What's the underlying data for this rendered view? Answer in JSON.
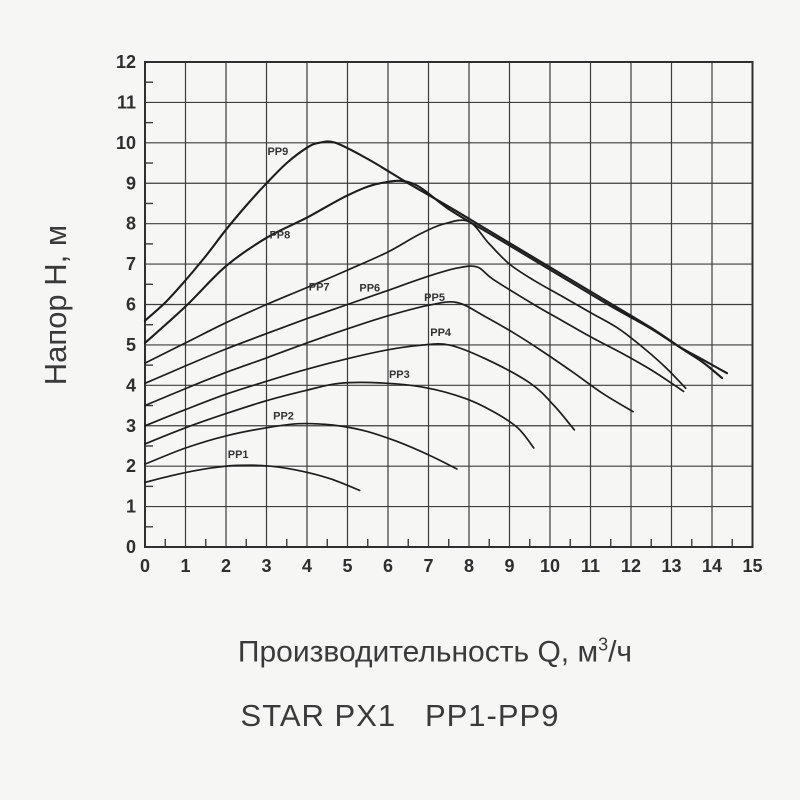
{
  "page": {
    "background": "#f6f6f4"
  },
  "chart_data": {
    "type": "line",
    "title": "STAR PX1   PP1-PP9",
    "xlabel": "Производительность Q, м³/ч",
    "xlabel_parts": {
      "base": "Производительность Q, м",
      "sup": "3",
      "tail": "/ч"
    },
    "ylabel": "Напор Н, м",
    "xlim": [
      0,
      15
    ],
    "ylim": [
      0,
      12
    ],
    "x_ticks": [
      0,
      1,
      2,
      3,
      4,
      5,
      6,
      7,
      8,
      9,
      10,
      11,
      12,
      13,
      14,
      15
    ],
    "y_ticks": [
      0,
      1,
      2,
      3,
      4,
      5,
      6,
      7,
      8,
      9,
      10,
      11,
      12
    ],
    "grid": true,
    "minor_tick_step": 0.5,
    "legend_position": "inline-labels",
    "colors": {
      "background": "#f6f6f4",
      "grid": "#3c3c3c",
      "border": "#2f2f2f",
      "curve": "#1d1d1d",
      "text": "#2e2e2e",
      "curve_label": "#333333"
    },
    "series": [
      {
        "name": "PP1",
        "stroke_width": 1.7,
        "points": [
          [
            0,
            1.6
          ],
          [
            0.8,
            1.8
          ],
          [
            1.6,
            1.95
          ],
          [
            2.3,
            2.02
          ],
          [
            3.1,
            2.0
          ],
          [
            3.9,
            1.87
          ],
          [
            4.6,
            1.68
          ],
          [
            5.3,
            1.4
          ]
        ]
      },
      {
        "name": "PP2",
        "stroke_width": 1.7,
        "points": [
          [
            0,
            2.05
          ],
          [
            1,
            2.45
          ],
          [
            2,
            2.75
          ],
          [
            3,
            2.95
          ],
          [
            3.8,
            3.05
          ],
          [
            4.6,
            3.02
          ],
          [
            5.4,
            2.88
          ],
          [
            6.2,
            2.62
          ],
          [
            7,
            2.28
          ],
          [
            7.7,
            1.93
          ]
        ]
      },
      {
        "name": "PP3",
        "stroke_width": 1.7,
        "points": [
          [
            0,
            2.55
          ],
          [
            1,
            2.95
          ],
          [
            2,
            3.3
          ],
          [
            3,
            3.62
          ],
          [
            4,
            3.88
          ],
          [
            4.8,
            4.05
          ],
          [
            5.8,
            4.06
          ],
          [
            6.9,
            3.95
          ],
          [
            7.9,
            3.68
          ],
          [
            8.6,
            3.35
          ],
          [
            9.2,
            2.95
          ],
          [
            9.6,
            2.45
          ]
        ]
      },
      {
        "name": "PP4",
        "stroke_width": 1.7,
        "points": [
          [
            0,
            3.0
          ],
          [
            1,
            3.4
          ],
          [
            2,
            3.78
          ],
          [
            3,
            4.1
          ],
          [
            4,
            4.4
          ],
          [
            5,
            4.66
          ],
          [
            6,
            4.88
          ],
          [
            6.8,
            4.99
          ],
          [
            7.5,
            5.0
          ],
          [
            8.4,
            4.66
          ],
          [
            9.5,
            4.06
          ],
          [
            10.1,
            3.5
          ],
          [
            10.6,
            2.9
          ]
        ]
      },
      {
        "name": "PP5",
        "stroke_width": 1.7,
        "points": [
          [
            0,
            3.5
          ],
          [
            1,
            3.92
          ],
          [
            2,
            4.32
          ],
          [
            3,
            4.68
          ],
          [
            4,
            5.05
          ],
          [
            5,
            5.4
          ],
          [
            6,
            5.72
          ],
          [
            7,
            5.98
          ],
          [
            7.7,
            6.05
          ],
          [
            8.4,
            5.7
          ],
          [
            9.1,
            5.3
          ],
          [
            9.8,
            4.85
          ],
          [
            10.6,
            4.3
          ],
          [
            11.3,
            3.8
          ],
          [
            12.05,
            3.35
          ]
        ]
      },
      {
        "name": "PP6",
        "stroke_width": 1.7,
        "points": [
          [
            0,
            4.05
          ],
          [
            1,
            4.48
          ],
          [
            2,
            4.9
          ],
          [
            3,
            5.28
          ],
          [
            4,
            5.65
          ],
          [
            5,
            6.0
          ],
          [
            6,
            6.35
          ],
          [
            7,
            6.7
          ],
          [
            7.7,
            6.9
          ],
          [
            8.2,
            6.93
          ],
          [
            8.6,
            6.62
          ],
          [
            9.6,
            6.0
          ],
          [
            10.3,
            5.6
          ],
          [
            11,
            5.2
          ],
          [
            11.8,
            4.78
          ],
          [
            12.5,
            4.38
          ],
          [
            13.3,
            3.85
          ]
        ]
      },
      {
        "name": "PP7",
        "stroke_width": 1.7,
        "points": [
          [
            0,
            4.55
          ],
          [
            1,
            5.05
          ],
          [
            2,
            5.55
          ],
          [
            3,
            6.0
          ],
          [
            4,
            6.42
          ],
          [
            5,
            6.85
          ],
          [
            6,
            7.3
          ],
          [
            6.8,
            7.75
          ],
          [
            7.4,
            8.0
          ],
          [
            8,
            8.05
          ],
          [
            8.5,
            7.5
          ],
          [
            9,
            7.0
          ],
          [
            9.6,
            6.6
          ],
          [
            10.3,
            6.2
          ],
          [
            11,
            5.8
          ],
          [
            11.7,
            5.4
          ],
          [
            12.4,
            4.85
          ],
          [
            12.9,
            4.4
          ],
          [
            13.35,
            3.93
          ]
        ]
      },
      {
        "name": "PP8",
        "stroke_width": 2.1,
        "points": [
          [
            0,
            5.05
          ],
          [
            1,
            5.95
          ],
          [
            2,
            6.95
          ],
          [
            3,
            7.65
          ],
          [
            4,
            8.15
          ],
          [
            5,
            8.7
          ],
          [
            5.8,
            9.0
          ],
          [
            6.6,
            9.0
          ],
          [
            7.5,
            8.36
          ],
          [
            8.5,
            7.76
          ],
          [
            9.5,
            7.16
          ],
          [
            10.5,
            6.56
          ],
          [
            11.5,
            5.96
          ],
          [
            12.5,
            5.4
          ],
          [
            13.2,
            4.95
          ],
          [
            13.8,
            4.62
          ],
          [
            14.37,
            4.3
          ]
        ]
      },
      {
        "name": "PP9",
        "stroke_width": 2.1,
        "points": [
          [
            0,
            5.6
          ],
          [
            0.5,
            6.05
          ],
          [
            1,
            6.6
          ],
          [
            1.5,
            7.2
          ],
          [
            2,
            7.85
          ],
          [
            2.5,
            8.45
          ],
          [
            3,
            9.0
          ],
          [
            3.5,
            9.5
          ],
          [
            4,
            9.88
          ],
          [
            4.3,
            10.0
          ],
          [
            4.7,
            10.0
          ],
          [
            5.5,
            9.6
          ],
          [
            6.5,
            9.0
          ],
          [
            7.5,
            8.42
          ],
          [
            8.5,
            7.82
          ],
          [
            9.5,
            7.22
          ],
          [
            10.5,
            6.62
          ],
          [
            11.5,
            6.02
          ],
          [
            12.5,
            5.42
          ],
          [
            13.3,
            4.88
          ],
          [
            13.8,
            4.55
          ],
          [
            14.25,
            4.18
          ]
        ]
      }
    ],
    "curve_labels": [
      {
        "text": "PP9",
        "q": 3.28,
        "h": 9.8
      },
      {
        "text": "PP8",
        "q": 3.33,
        "h": 7.73
      },
      {
        "text": "PP7",
        "q": 4.3,
        "h": 6.45
      },
      {
        "text": "PP6",
        "q": 5.55,
        "h": 6.42
      },
      {
        "text": "PP5",
        "q": 7.15,
        "h": 6.18
      },
      {
        "text": "PP4",
        "q": 7.3,
        "h": 5.32
      },
      {
        "text": "PP3",
        "q": 6.28,
        "h": 4.28
      },
      {
        "text": "PP2",
        "q": 3.42,
        "h": 3.25
      },
      {
        "text": "PP1",
        "q": 2.3,
        "h": 2.3
      }
    ]
  }
}
